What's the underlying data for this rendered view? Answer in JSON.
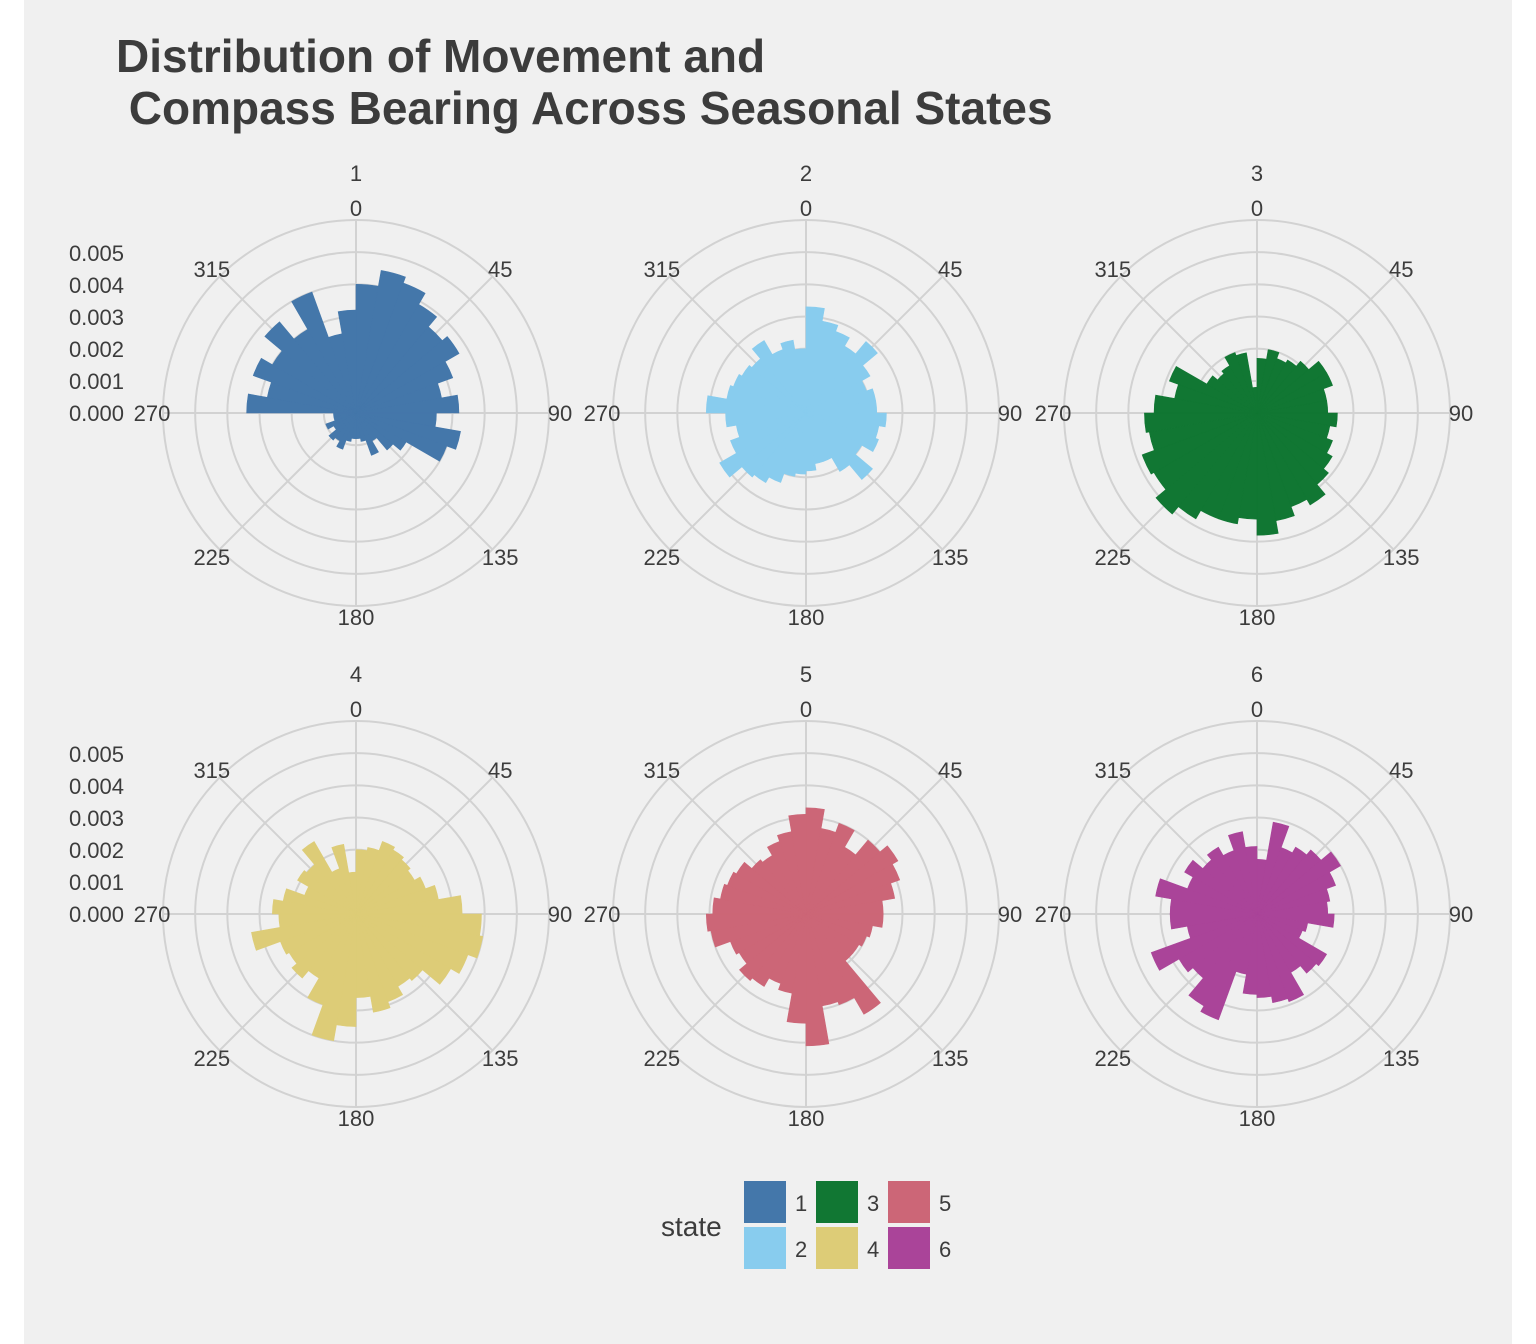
{
  "chart_data": {
    "type": "bar",
    "coord": "polar",
    "title": "Distribution of Movement and\n Compass Bearing Across Seasonal States",
    "xlabel": "",
    "ylabel": "",
    "legend": {
      "title": "state",
      "position": "bottom",
      "items": [
        "1",
        "2",
        "3",
        "4",
        "5",
        "6"
      ]
    },
    "x_ticks": [
      0,
      45,
      90,
      135,
      180,
      225,
      270,
      315
    ],
    "xlim": [
      0,
      360
    ],
    "y_ticks": [
      "0.000",
      "0.001",
      "0.002",
      "0.003",
      "0.004",
      "0.005"
    ],
    "ylim": [
      0,
      0.006
    ],
    "bin_width_deg": 10,
    "grid": true,
    "panels": [
      {
        "name": "1",
        "color": "#4477aa",
        "values": [
          0.004,
          0.0045,
          0.0043,
          0.0039,
          0.0035,
          0.0037,
          0.0032,
          0.0027,
          0.0032,
          0.0025,
          0.0033,
          0.003,
          0.0018,
          0.0015,
          0.001,
          0.0014,
          0.0009,
          0.0008,
          0.0008,
          0.0009,
          0.0012,
          0.001,
          0.0011,
          0.0008,
          0.001,
          0.0007,
          0.0007,
          0.0034,
          0.0028,
          0.0034,
          0.003,
          0.0037,
          0.003,
          0.004,
          0.0025,
          0.0032
        ]
      },
      {
        "name": "2",
        "color": "#88ccee",
        "values": [
          0.0033,
          0.0029,
          0.0027,
          0.0024,
          0.0029,
          0.0023,
          0.002,
          0.0022,
          0.0022,
          0.0025,
          0.0023,
          0.0024,
          0.002,
          0.0027,
          0.0021,
          0.0016,
          0.0016,
          0.0018,
          0.0019,
          0.002,
          0.0023,
          0.0025,
          0.0026,
          0.0031,
          0.0025,
          0.0022,
          0.0025,
          0.0031,
          0.0025,
          0.0024,
          0.0023,
          0.0022,
          0.0026,
          0.0021,
          0.0023,
          0.002
        ]
      },
      {
        "name": "3",
        "color": "#117733",
        "values": [
          0.0017,
          0.002,
          0.0018,
          0.0019,
          0.0021,
          0.0025,
          0.0025,
          0.0022,
          0.0022,
          0.0025,
          0.0023,
          0.0025,
          0.0027,
          0.0029,
          0.0033,
          0.0031,
          0.0034,
          0.0038,
          0.0033,
          0.0035,
          0.0035,
          0.0038,
          0.0041,
          0.0037,
          0.0038,
          0.0034,
          0.0035,
          0.0032,
          0.0026,
          0.0029,
          0.0018,
          0.0016,
          0.0017,
          0.002,
          0.0019,
          0.0008
        ]
      },
      {
        "name": "4",
        "color": "#ddcc77",
        "values": [
          0.002,
          0.0021,
          0.0024,
          0.0023,
          0.0022,
          0.0021,
          0.0023,
          0.0026,
          0.0033,
          0.0039,
          0.004,
          0.0037,
          0.0034,
          0.0027,
          0.0026,
          0.0029,
          0.0031,
          0.0026,
          0.0035,
          0.004,
          0.003,
          0.0023,
          0.0026,
          0.0024,
          0.0025,
          0.0033,
          0.0024,
          0.0026,
          0.0023,
          0.0017,
          0.0021,
          0.002,
          0.0026,
          0.0015,
          0.0022,
          0.0013
        ]
      },
      {
        "name": "5",
        "color": "#cc6677",
        "values": [
          0.0033,
          0.0027,
          0.003,
          0.0024,
          0.003,
          0.0033,
          0.0031,
          0.0028,
          0.0024,
          0.0024,
          0.0021,
          0.002,
          0.0019,
          0.0019,
          0.0036,
          0.003,
          0.0029,
          0.0041,
          0.0034,
          0.0025,
          0.0023,
          0.0026,
          0.0027,
          0.0024,
          0.0025,
          0.003,
          0.0031,
          0.0029,
          0.0027,
          0.0026,
          0.0025,
          0.0022,
          0.0021,
          0.0024,
          0.0026,
          0.0031
        ]
      },
      {
        "name": "6",
        "color": "#aa4499",
        "values": [
          0.0017,
          0.0029,
          0.0022,
          0.0024,
          0.0026,
          0.003,
          0.0026,
          0.0023,
          0.0022,
          0.0024,
          0.0016,
          0.0015,
          0.0025,
          0.0024,
          0.0021,
          0.0029,
          0.0028,
          0.0026,
          0.0025,
          0.0019,
          0.0035,
          0.0033,
          0.0026,
          0.0028,
          0.0035,
          0.0022,
          0.0027,
          0.0027,
          0.0032,
          0.0023,
          0.0026,
          0.0022,
          0.0024,
          0.0021,
          0.0026,
          0.0021
        ]
      }
    ]
  }
}
